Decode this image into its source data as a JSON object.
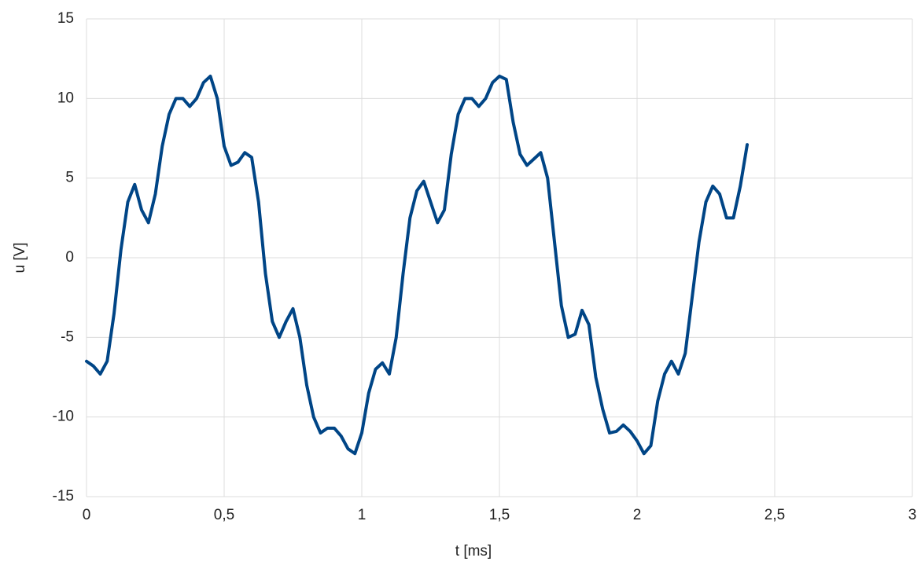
{
  "chart_data": {
    "type": "line",
    "xlabel": "t [ms]",
    "ylabel": "u [V]",
    "color": "#004586",
    "grid": true,
    "xlim": [
      0,
      3
    ],
    "xticks": [
      0,
      {
        "value": 0.5,
        "label": "0,5"
      },
      1,
      {
        "value": 1.5,
        "label": "1,5"
      },
      2,
      {
        "value": 2.5,
        "label": "2,5"
      },
      3
    ],
    "ylim": [
      -15,
      15
    ],
    "yticks": [
      -15,
      -10,
      -5,
      0,
      5,
      10,
      15
    ],
    "x": [
      0,
      0.025,
      0.05,
      0.075,
      0.1,
      0.125,
      0.15,
      0.175,
      0.2,
      0.225,
      0.25,
      0.275,
      0.3,
      0.325,
      0.35,
      0.375,
      0.4,
      0.425,
      0.45,
      0.475,
      0.5,
      0.525,
      0.55,
      0.575,
      0.6,
      0.625,
      0.65,
      0.675,
      0.7,
      0.725,
      0.75,
      0.775,
      0.8,
      0.825,
      0.85,
      0.875,
      0.9,
      0.925,
      0.95,
      0.975,
      1.0,
      1.025,
      1.05,
      1.075,
      1.1,
      1.125,
      1.15,
      1.175,
      1.2,
      1.225,
      1.25,
      1.275,
      1.3,
      1.325,
      1.35,
      1.375,
      1.4,
      1.425,
      1.45,
      1.475,
      1.5,
      1.525,
      1.55,
      1.575,
      1.6,
      1.625,
      1.65,
      1.675,
      1.7,
      1.725,
      1.75,
      1.775,
      1.8,
      1.825,
      1.85,
      1.875,
      1.9,
      1.925,
      1.95,
      1.975,
      2.0,
      2.025,
      2.05,
      2.075,
      2.1,
      2.125,
      2.15,
      2.175,
      2.2,
      2.225,
      2.25,
      2.275,
      2.3,
      2.325,
      2.35,
      2.375,
      2.4
    ],
    "values": [
      -6.5,
      -6.8,
      -7.3,
      -6.5,
      -3.5,
      0.5,
      3.5,
      4.6,
      3.0,
      2.2,
      4.0,
      7.0,
      9.0,
      10.0,
      10.0,
      9.5,
      10.0,
      11.0,
      11.4,
      10.0,
      7.0,
      5.8,
      6.0,
      6.6,
      6.3,
      3.5,
      -1.0,
      -4.0,
      -5.0,
      -4.0,
      -3.2,
      -5.0,
      -8.0,
      -10.0,
      -11.0,
      -10.7,
      -10.7,
      -11.2,
      -12.0,
      -12.3,
      -11.0,
      -8.5,
      -7.0,
      -6.6,
      -7.3,
      -5.0,
      -1.0,
      2.5,
      4.2,
      4.8,
      3.5,
      2.2,
      3.0,
      6.5,
      9.0,
      10.0,
      10.0,
      9.5,
      10.0,
      11.0,
      11.4,
      11.2,
      8.5,
      6.5,
      5.8,
      6.2,
      6.6,
      5.0,
      1.0,
      -3.0,
      -5.0,
      -4.8,
      -3.3,
      -4.2,
      -7.5,
      -9.5,
      -11.0,
      -10.9,
      -10.5,
      -10.9,
      -11.5,
      -12.3,
      -11.8,
      -9.0,
      -7.3,
      -6.5,
      -7.3,
      -6.0,
      -2.5,
      1.0,
      3.5,
      4.5,
      4.0,
      2.5,
      2.5,
      4.5,
      7.1
    ]
  }
}
